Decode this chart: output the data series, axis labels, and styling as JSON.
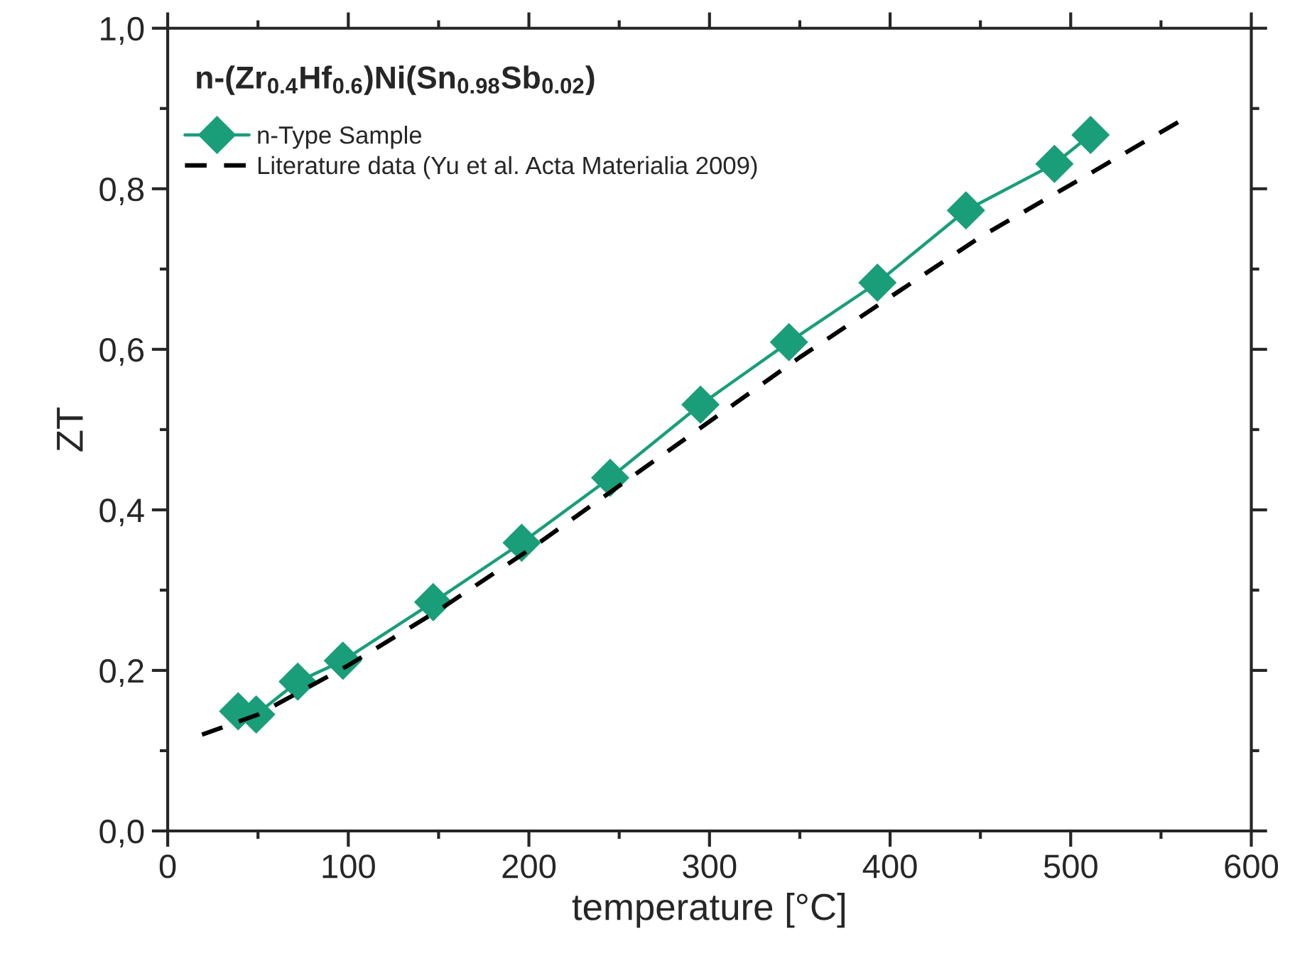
{
  "chart_data": {
    "type": "line",
    "title": "n-(Zr$_{0.4}$Hf$_{0.6}$)Ni(Sn$_{0.98}$Sb$_{0.02}$)",
    "xlabel": "temperature [°C]",
    "ylabel": "ZT",
    "series": [
      {
        "name": "n-Type Sample",
        "color": "#1a9e7a",
        "marker": "diamond",
        "line_style": "solid",
        "x": [
          39,
          49,
          72,
          97,
          147,
          196,
          245,
          295,
          344,
          393,
          442,
          491,
          511
        ],
        "values": [
          0.149,
          0.145,
          0.186,
          0.212,
          0.285,
          0.359,
          0.44,
          0.531,
          0.609,
          0.683,
          0.773,
          0.831,
          0.867
        ]
      },
      {
        "name": "Literature data (Yu et al. Acta Materialia 2009)",
        "color": "#000000",
        "marker": "none",
        "line_style": "dashed",
        "x": [
          19,
          50,
          99,
          150,
          200,
          250,
          300,
          350,
          400,
          450,
          500,
          561
        ],
        "values": [
          0.12,
          0.145,
          0.205,
          0.275,
          0.35,
          0.43,
          0.51,
          0.59,
          0.665,
          0.74,
          0.805,
          0.885
        ]
      }
    ],
    "xlim": [
      0,
      600
    ],
    "xticks": [
      0,
      100,
      200,
      300,
      400,
      500,
      600
    ],
    "ylim": [
      0,
      1.0
    ],
    "yticks": [
      {
        "value": 0,
        "label": "0,0"
      },
      {
        "value": 0.2,
        "label": "0,2"
      },
      {
        "value": 0.4,
        "label": "0,4"
      },
      {
        "value": 0.6,
        "label": "0,6"
      },
      {
        "value": 0.8,
        "label": "0,8"
      },
      {
        "value": 1.0,
        "label": "1,0"
      }
    ],
    "grid": false,
    "legend": "top left"
  }
}
